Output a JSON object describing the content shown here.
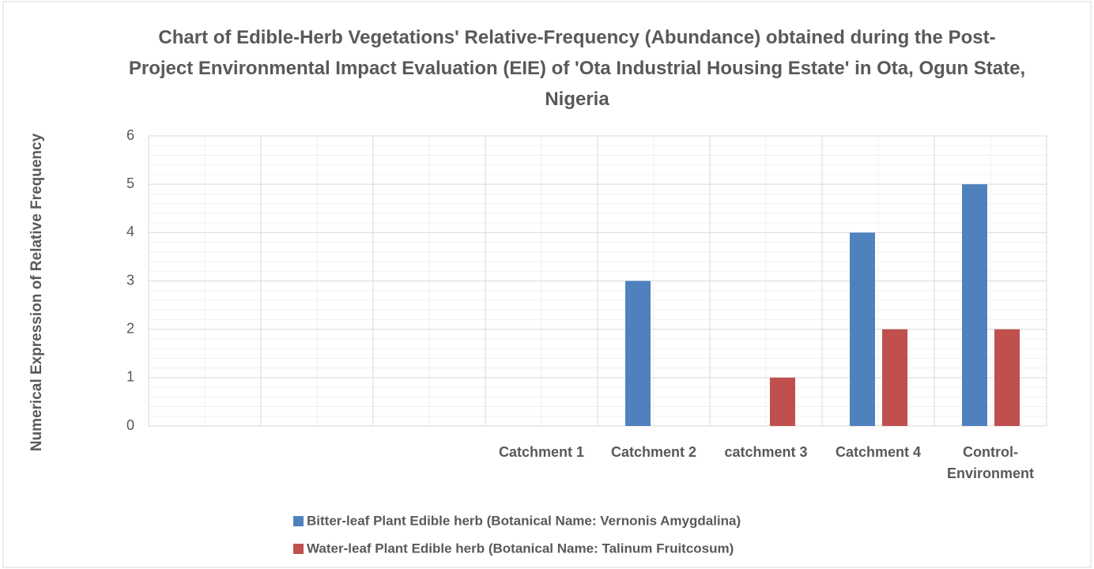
{
  "chart_data": {
    "type": "bar",
    "title": "Chart of Edible-Herb Vegetations' Relative-Frequency (Abundance) obtained during the Post-Project Environmental Impact Evaluation (EIE) of 'Ota Industrial Housing Estate' in Ota, Ogun State, Nigeria",
    "y_label": "Numerical Expression of Relative Frequency",
    "categories": [
      null,
      null,
      null,
      "Catchment 1",
      "Catchment 2",
      "catchment 3",
      "Catchment 4",
      "Control-Environment"
    ],
    "series": [
      {
        "name": "Bitter-leaf Plant Edible herb (Botanical Name: Vernonis Amygdalina)",
        "color": "#4f81bd",
        "values": [
          null,
          null,
          null,
          0,
          3,
          0,
          4,
          5
        ]
      },
      {
        "name": "Water-leaf Plant Edible herb (Botanical Name: Talinum Fruitcosum)",
        "color": "#c0504d",
        "values": [
          null,
          null,
          null,
          0,
          0,
          1,
          2,
          2
        ]
      }
    ],
    "ylim": [
      0,
      6
    ],
    "yticks": [
      0,
      1,
      2,
      3,
      4,
      5,
      6
    ],
    "grid": true,
    "minor_grid": true,
    "legend": "bottom"
  }
}
